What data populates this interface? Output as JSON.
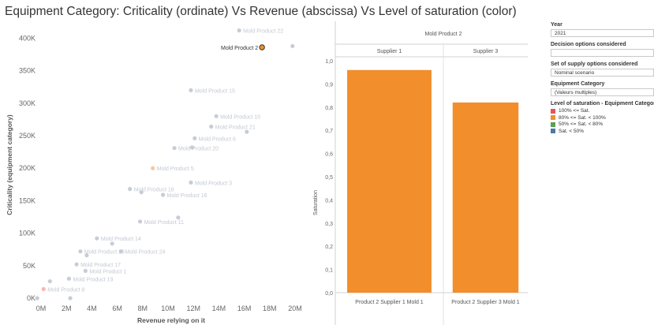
{
  "title": "Equipment Category: Criticality (ordinate) Vs Revenue (abscissa) Vs Level of saturation (color)",
  "scatter": {
    "chart_data": {
      "type": "scatter",
      "xlabel": "Revenue relying on it",
      "ylabel": "Criticality (equipment category)",
      "xlim": [
        0,
        20
      ],
      "ylim": [
        0,
        420000
      ],
      "xticks": [
        "0M",
        "2M",
        "4M",
        "6M",
        "8M",
        "10M",
        "12M",
        "14M",
        "16M",
        "18M",
        "20M"
      ],
      "yticks": [
        "0K",
        "50K",
        "100K",
        "150K",
        "200K",
        "250K",
        "300K",
        "350K",
        "400K"
      ],
      "points": [
        {
          "label": "Mold Product 22",
          "x": 15.6,
          "y": 412000,
          "color": "#c6cdd8"
        },
        {
          "label": "Mold Product 2",
          "x": 17.4,
          "y": 386000,
          "color": "#f28e2b",
          "highlight": true
        },
        {
          "label": "",
          "x": 19.8,
          "y": 388000,
          "color": "#c6cdd8"
        },
        {
          "label": "Mold Product 15",
          "x": 11.8,
          "y": 320000,
          "color": "#c6cdd8"
        },
        {
          "label": "Mold Product 10",
          "x": 13.8,
          "y": 280000,
          "color": "#c6cdd8"
        },
        {
          "label": "Mold Product 21",
          "x": 13.4,
          "y": 264000,
          "color": "#c6cdd8"
        },
        {
          "label": "",
          "x": 16.2,
          "y": 256000,
          "color": "#c6cdd8"
        },
        {
          "label": "Mold Product 6",
          "x": 12.1,
          "y": 246000,
          "color": "#c6cdd8"
        },
        {
          "label": "Mold Product 20",
          "x": 10.5,
          "y": 231000,
          "color": "#c6cdd8"
        },
        {
          "label": "",
          "x": 11.9,
          "y": 232000,
          "color": "#c6cdd8"
        },
        {
          "label": "Mold Product 5",
          "x": 8.8,
          "y": 200000,
          "color": "#f5c99b"
        },
        {
          "label": "Mold Product 3",
          "x": 11.8,
          "y": 178000,
          "color": "#c6cdd8"
        },
        {
          "label": "Mold Product 18",
          "x": 7.0,
          "y": 168000,
          "color": "#c6cdd8"
        },
        {
          "label": "",
          "x": 7.9,
          "y": 163000,
          "color": "#c6cdd8"
        },
        {
          "label": "Mold Product 16",
          "x": 9.6,
          "y": 159000,
          "color": "#c6cdd8"
        },
        {
          "label": "",
          "x": 10.8,
          "y": 124000,
          "color": "#c6cdd8"
        },
        {
          "label": "Mold Product 11",
          "x": 7.8,
          "y": 118000,
          "color": "#c6cdd8"
        },
        {
          "label": "Mold Product 14",
          "x": 4.4,
          "y": 92000,
          "color": "#c6cdd8"
        },
        {
          "label": "",
          "x": 5.6,
          "y": 84000,
          "color": "#c6cdd8"
        },
        {
          "label": "Mold Product 24",
          "x": 6.3,
          "y": 72000,
          "color": "#c6cdd8"
        },
        {
          "label": "Mold Product 26",
          "x": 3.1,
          "y": 72000,
          "color": "#c6cdd8"
        },
        {
          "label": "",
          "x": 3.6,
          "y": 66000,
          "color": "#c6cdd8"
        },
        {
          "label": "Mold Product 17",
          "x": 2.8,
          "y": 52000,
          "color": "#c6cdd8"
        },
        {
          "label": "Mold Product 1",
          "x": 3.5,
          "y": 42000,
          "color": "#c6cdd8"
        },
        {
          "label": "Mold Product 19",
          "x": 2.2,
          "y": 30000,
          "color": "#c6cdd8"
        },
        {
          "label": "",
          "x": 0.7,
          "y": 26000,
          "color": "#c6cdd8"
        },
        {
          "label": "Mold Product 8",
          "x": 0.2,
          "y": 14000,
          "color": "#f7b7b4"
        },
        {
          "label": "",
          "x": 2.3,
          "y": 0,
          "color": "#c6cdd8"
        },
        {
          "label": "",
          "x": -0.3,
          "y": 0,
          "color": "#c6cdd8"
        }
      ]
    }
  },
  "bar": {
    "header": "Mold Product 2",
    "ylabel": "Saturation",
    "chart_data": {
      "type": "bar",
      "title": "Mold Product 2",
      "ylabel": "Saturation",
      "ylim": [
        0,
        1.0
      ],
      "yticks": [
        "0,0",
        "0,1",
        "0,2",
        "0,3",
        "0,4",
        "0,5",
        "0,6",
        "0,7",
        "0,8",
        "0,9",
        "1,0"
      ],
      "panels": [
        "Supplier 1",
        "Supplier 3"
      ],
      "categories": [
        "Product 2 Supplier 1 Mold 1",
        "Product 2 Supplier 3 Mold 1"
      ],
      "values": [
        0.96,
        0.82
      ],
      "color": "#f28e2b"
    }
  },
  "filters": {
    "year_label": "Year",
    "year_value": "2021",
    "decision_label": "Decision options considered",
    "decision_value": "",
    "supply_label": "Set of supply options considered",
    "supply_value": "Nominal scenario",
    "category_label": "Equipment Category",
    "category_value": "(Valeurs multiples)",
    "legend_title": "Level of saturation - Equipment Category",
    "legend": [
      {
        "label": "100% <= Sat.",
        "color": "#e15759"
      },
      {
        "label": "80% <= Sat. < 100%",
        "color": "#f28e2b"
      },
      {
        "label": "50% <= Sat. < 80%",
        "color": "#59a14f"
      },
      {
        "label": "Sat. < 50%",
        "color": "#4e79a7"
      }
    ]
  }
}
